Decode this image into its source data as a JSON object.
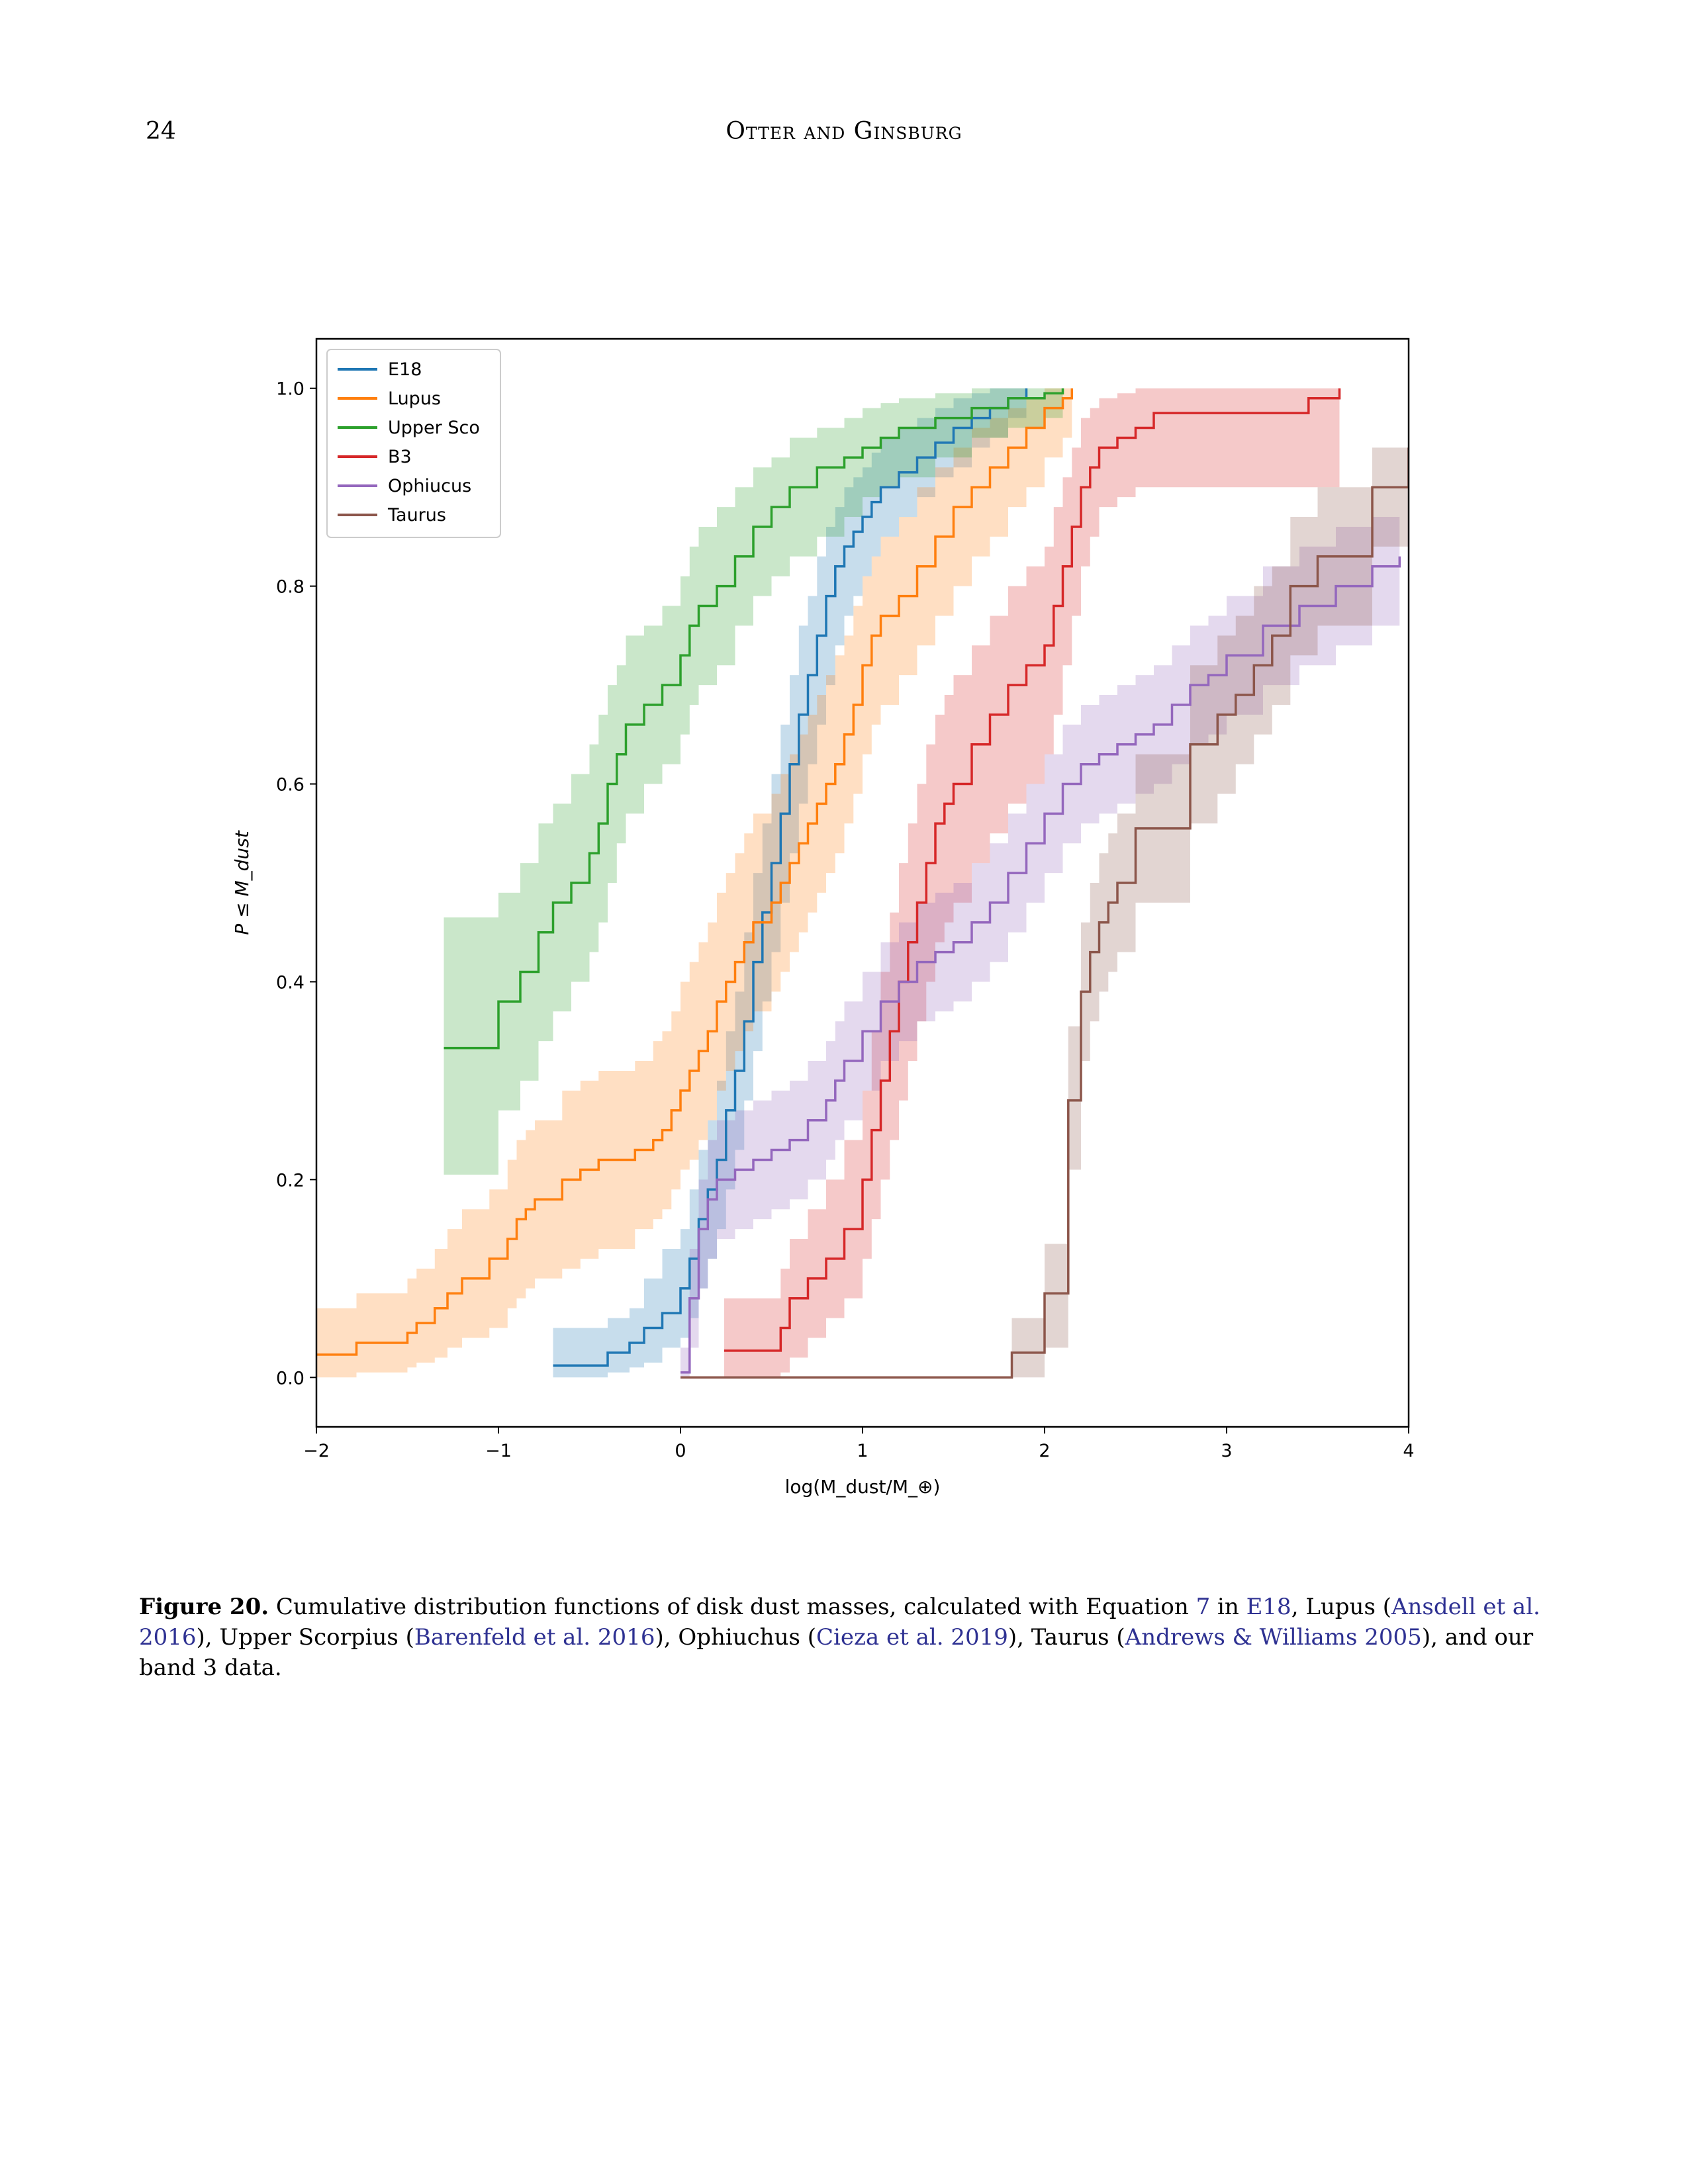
{
  "header": {
    "page_number": "24",
    "running_head": "Otter and Ginsburg"
  },
  "caption": {
    "label": "Figure 20.",
    "t1": " Cumulative distribution functions of disk dust masses, calculated with Equation ",
    "r1": "7",
    "t2": " in ",
    "r2": "E18",
    "t3": ", Lupus (",
    "r3": "Ansdell et al. 2016",
    "t4": "), Upper Scorpius (",
    "r4": "Barenfeld et al. 2016",
    "t5": "), Ophiuchus (",
    "r5": "Cieza et al. 2019",
    "t6": "), Taurus (",
    "r6": "Andrews & Williams 2005",
    "t7": "), and our band 3 data."
  },
  "chart_data": {
    "type": "line",
    "subtype": "step-cdf",
    "title": "",
    "xlabel": "log(M_dust/M_⊕)",
    "ylabel": "P ≤ M_dust",
    "xlim": [
      -2,
      4
    ],
    "ylim": [
      -0.05,
      1.05
    ],
    "xticks": [
      -2,
      -1,
      0,
      1,
      2,
      3,
      4
    ],
    "xtick_labels": [
      "−2",
      "−1",
      "0",
      "1",
      "2",
      "3",
      "4"
    ],
    "yticks": [
      0.0,
      0.2,
      0.4,
      0.6,
      0.8,
      1.0
    ],
    "ytick_labels": [
      "0.0",
      "0.2",
      "0.4",
      "0.6",
      "0.8",
      "1.0"
    ],
    "grid": false,
    "legend_position": "upper-left",
    "series": [
      {
        "name": "E18",
        "color": "#1f77b4",
        "x": [
          -0.7,
          -0.4,
          -0.28,
          -0.2,
          -0.1,
          0.0,
          0.05,
          0.1,
          0.15,
          0.2,
          0.25,
          0.3,
          0.35,
          0.4,
          0.45,
          0.5,
          0.55,
          0.6,
          0.65,
          0.7,
          0.75,
          0.8,
          0.85,
          0.9,
          0.95,
          1.0,
          1.05,
          1.1,
          1.2,
          1.3,
          1.4,
          1.5,
          1.6,
          1.7,
          1.8,
          1.9
        ],
        "y": [
          0.012,
          0.025,
          0.035,
          0.05,
          0.065,
          0.09,
          0.12,
          0.16,
          0.19,
          0.22,
          0.27,
          0.31,
          0.36,
          0.42,
          0.47,
          0.52,
          0.57,
          0.62,
          0.67,
          0.71,
          0.75,
          0.79,
          0.82,
          0.84,
          0.855,
          0.87,
          0.885,
          0.9,
          0.915,
          0.93,
          0.945,
          0.96,
          0.97,
          0.98,
          0.99,
          1.0
        ],
        "band_lo": [
          0.0,
          0.005,
          0.01,
          0.015,
          0.03,
          0.04,
          0.06,
          0.09,
          0.12,
          0.15,
          0.19,
          0.23,
          0.28,
          0.33,
          0.38,
          0.43,
          0.48,
          0.53,
          0.58,
          0.62,
          0.66,
          0.7,
          0.74,
          0.77,
          0.79,
          0.81,
          0.83,
          0.85,
          0.87,
          0.89,
          0.91,
          0.92,
          0.94,
          0.95,
          0.97,
          0.98
        ],
        "band_hi": [
          0.05,
          0.06,
          0.07,
          0.1,
          0.13,
          0.15,
          0.19,
          0.23,
          0.26,
          0.3,
          0.35,
          0.39,
          0.45,
          0.51,
          0.56,
          0.61,
          0.66,
          0.71,
          0.76,
          0.79,
          0.83,
          0.86,
          0.88,
          0.9,
          0.91,
          0.92,
          0.935,
          0.95,
          0.96,
          0.97,
          0.98,
          0.99,
          0.995,
          1.0,
          1.0,
          1.0
        ]
      },
      {
        "name": "Lupus",
        "color": "#ff7f0e",
        "x": [
          -2.0,
          -1.78,
          -1.5,
          -1.45,
          -1.35,
          -1.28,
          -1.2,
          -1.05,
          -0.95,
          -0.9,
          -0.85,
          -0.8,
          -0.65,
          -0.55,
          -0.45,
          -0.25,
          -0.15,
          -0.1,
          -0.05,
          0.0,
          0.05,
          0.1,
          0.15,
          0.2,
          0.25,
          0.3,
          0.35,
          0.4,
          0.5,
          0.55,
          0.6,
          0.65,
          0.7,
          0.75,
          0.8,
          0.85,
          0.9,
          0.95,
          1.0,
          1.05,
          1.1,
          1.2,
          1.3,
          1.4,
          1.5,
          1.6,
          1.7,
          1.8,
          1.9,
          2.0,
          2.1,
          2.15
        ],
        "y": [
          0.023,
          0.035,
          0.045,
          0.055,
          0.07,
          0.085,
          0.1,
          0.12,
          0.14,
          0.16,
          0.17,
          0.18,
          0.2,
          0.21,
          0.22,
          0.23,
          0.24,
          0.25,
          0.27,
          0.29,
          0.31,
          0.33,
          0.35,
          0.38,
          0.4,
          0.42,
          0.44,
          0.46,
          0.48,
          0.5,
          0.52,
          0.54,
          0.56,
          0.58,
          0.6,
          0.62,
          0.65,
          0.68,
          0.72,
          0.75,
          0.77,
          0.79,
          0.82,
          0.85,
          0.88,
          0.9,
          0.92,
          0.94,
          0.96,
          0.98,
          0.99,
          1.0
        ],
        "band_lo": [
          0.0,
          0.005,
          0.01,
          0.015,
          0.02,
          0.03,
          0.04,
          0.05,
          0.07,
          0.08,
          0.09,
          0.1,
          0.11,
          0.12,
          0.13,
          0.15,
          0.16,
          0.17,
          0.19,
          0.21,
          0.22,
          0.24,
          0.26,
          0.29,
          0.31,
          0.33,
          0.35,
          0.37,
          0.39,
          0.41,
          0.43,
          0.45,
          0.47,
          0.49,
          0.51,
          0.53,
          0.56,
          0.59,
          0.63,
          0.66,
          0.68,
          0.71,
          0.74,
          0.77,
          0.8,
          0.83,
          0.85,
          0.88,
          0.9,
          0.93,
          0.95,
          0.96
        ],
        "band_hi": [
          0.07,
          0.085,
          0.1,
          0.11,
          0.13,
          0.15,
          0.17,
          0.19,
          0.22,
          0.24,
          0.25,
          0.26,
          0.29,
          0.3,
          0.31,
          0.32,
          0.34,
          0.35,
          0.37,
          0.4,
          0.42,
          0.44,
          0.46,
          0.49,
          0.51,
          0.53,
          0.55,
          0.57,
          0.59,
          0.61,
          0.63,
          0.65,
          0.67,
          0.69,
          0.71,
          0.73,
          0.75,
          0.78,
          0.81,
          0.83,
          0.85,
          0.87,
          0.9,
          0.92,
          0.94,
          0.96,
          0.97,
          0.98,
          0.99,
          1.0,
          1.0,
          1.0
        ]
      },
      {
        "name": "Upper Sco",
        "color": "#2ca02c",
        "x": [
          -1.3,
          -1.0,
          -0.88,
          -0.78,
          -0.7,
          -0.6,
          -0.5,
          -0.45,
          -0.4,
          -0.35,
          -0.3,
          -0.2,
          -0.1,
          0.0,
          0.05,
          0.1,
          0.2,
          0.3,
          0.4,
          0.5,
          0.6,
          0.75,
          0.9,
          1.0,
          1.1,
          1.2,
          1.4,
          1.6,
          1.8,
          2.0,
          2.1
        ],
        "y": [
          0.333,
          0.38,
          0.41,
          0.45,
          0.48,
          0.5,
          0.53,
          0.56,
          0.6,
          0.63,
          0.66,
          0.68,
          0.7,
          0.73,
          0.76,
          0.78,
          0.8,
          0.83,
          0.86,
          0.88,
          0.9,
          0.92,
          0.93,
          0.94,
          0.95,
          0.96,
          0.97,
          0.98,
          0.99,
          0.995,
          1.0
        ],
        "band_lo": [
          0.205,
          0.27,
          0.3,
          0.34,
          0.37,
          0.4,
          0.43,
          0.46,
          0.5,
          0.54,
          0.57,
          0.6,
          0.62,
          0.65,
          0.68,
          0.7,
          0.72,
          0.76,
          0.79,
          0.81,
          0.83,
          0.85,
          0.87,
          0.89,
          0.9,
          0.91,
          0.93,
          0.95,
          0.96,
          0.97,
          0.98
        ],
        "band_hi": [
          0.465,
          0.49,
          0.52,
          0.56,
          0.58,
          0.61,
          0.64,
          0.67,
          0.7,
          0.72,
          0.75,
          0.76,
          0.78,
          0.81,
          0.84,
          0.86,
          0.88,
          0.9,
          0.92,
          0.93,
          0.95,
          0.96,
          0.97,
          0.98,
          0.985,
          0.99,
          0.995,
          1.0,
          1.0,
          1.0,
          1.0
        ]
      },
      {
        "name": "B3",
        "color": "#d62728",
        "x": [
          0.24,
          0.55,
          0.6,
          0.7,
          0.8,
          0.9,
          1.0,
          1.05,
          1.1,
          1.15,
          1.2,
          1.25,
          1.3,
          1.35,
          1.4,
          1.45,
          1.5,
          1.6,
          1.7,
          1.8,
          1.9,
          2.0,
          2.05,
          2.1,
          2.15,
          2.2,
          2.25,
          2.3,
          2.4,
          2.5,
          2.6,
          3.45,
          3.62
        ],
        "y": [
          0.027,
          0.05,
          0.08,
          0.1,
          0.12,
          0.15,
          0.2,
          0.25,
          0.3,
          0.35,
          0.4,
          0.44,
          0.48,
          0.52,
          0.56,
          0.58,
          0.6,
          0.64,
          0.67,
          0.7,
          0.72,
          0.74,
          0.78,
          0.82,
          0.86,
          0.9,
          0.92,
          0.94,
          0.95,
          0.96,
          0.975,
          0.99,
          1.0
        ],
        "band_lo": [
          0.0,
          0.005,
          0.02,
          0.04,
          0.06,
          0.08,
          0.12,
          0.16,
          0.2,
          0.24,
          0.28,
          0.32,
          0.36,
          0.4,
          0.44,
          0.46,
          0.48,
          0.52,
          0.55,
          0.58,
          0.6,
          0.63,
          0.67,
          0.72,
          0.77,
          0.82,
          0.85,
          0.88,
          0.89,
          0.9,
          0.9,
          0.9,
          0.905
        ],
        "band_hi": [
          0.08,
          0.11,
          0.14,
          0.17,
          0.2,
          0.24,
          0.29,
          0.35,
          0.41,
          0.47,
          0.52,
          0.56,
          0.6,
          0.64,
          0.67,
          0.69,
          0.71,
          0.74,
          0.77,
          0.8,
          0.82,
          0.84,
          0.88,
          0.91,
          0.94,
          0.97,
          0.98,
          0.99,
          0.995,
          1.0,
          1.0,
          1.0,
          1.0
        ]
      },
      {
        "name": "Ophiucus",
        "color": "#9467bd",
        "x": [
          0.0,
          0.05,
          0.1,
          0.15,
          0.2,
          0.3,
          0.4,
          0.5,
          0.6,
          0.7,
          0.8,
          0.85,
          0.9,
          1.0,
          1.1,
          1.2,
          1.3,
          1.4,
          1.5,
          1.6,
          1.7,
          1.8,
          1.9,
          2.0,
          2.1,
          2.2,
          2.3,
          2.4,
          2.5,
          2.6,
          2.7,
          2.8,
          2.9,
          3.0,
          3.2,
          3.4,
          3.6,
          3.8,
          3.95
        ],
        "y": [
          0.005,
          0.08,
          0.15,
          0.18,
          0.2,
          0.21,
          0.22,
          0.23,
          0.24,
          0.26,
          0.28,
          0.3,
          0.32,
          0.35,
          0.38,
          0.4,
          0.42,
          0.43,
          0.44,
          0.46,
          0.48,
          0.51,
          0.54,
          0.57,
          0.6,
          0.62,
          0.63,
          0.64,
          0.65,
          0.66,
          0.68,
          0.7,
          0.71,
          0.73,
          0.76,
          0.78,
          0.8,
          0.82,
          0.83
        ],
        "band_lo": [
          0.0,
          0.03,
          0.09,
          0.12,
          0.14,
          0.15,
          0.16,
          0.17,
          0.18,
          0.2,
          0.22,
          0.24,
          0.26,
          0.29,
          0.32,
          0.34,
          0.36,
          0.37,
          0.38,
          0.4,
          0.42,
          0.45,
          0.48,
          0.51,
          0.54,
          0.56,
          0.57,
          0.58,
          0.59,
          0.6,
          0.62,
          0.64,
          0.65,
          0.67,
          0.7,
          0.72,
          0.74,
          0.76,
          0.77
        ],
        "band_hi": [
          0.03,
          0.13,
          0.2,
          0.24,
          0.26,
          0.27,
          0.28,
          0.29,
          0.3,
          0.32,
          0.34,
          0.36,
          0.38,
          0.41,
          0.44,
          0.46,
          0.48,
          0.49,
          0.5,
          0.52,
          0.54,
          0.57,
          0.6,
          0.63,
          0.66,
          0.68,
          0.69,
          0.7,
          0.71,
          0.72,
          0.74,
          0.76,
          0.77,
          0.79,
          0.82,
          0.84,
          0.86,
          0.87,
          0.88
        ]
      },
      {
        "name": "Taurus",
        "color": "#8c564b",
        "x": [
          0.0,
          1.82,
          2.0,
          2.13,
          2.2,
          2.25,
          2.3,
          2.35,
          2.4,
          2.5,
          2.8,
          2.95,
          3.05,
          3.15,
          3.25,
          3.35,
          3.5,
          3.8,
          4.0
        ],
        "y": [
          0.0,
          0.025,
          0.085,
          0.28,
          0.39,
          0.43,
          0.46,
          0.48,
          0.5,
          0.555,
          0.64,
          0.67,
          0.69,
          0.72,
          0.75,
          0.8,
          0.83,
          0.9,
          0.94
        ],
        "band_lo": [
          0.0,
          0.0,
          0.03,
          0.21,
          0.32,
          0.36,
          0.39,
          0.41,
          0.43,
          0.48,
          0.56,
          0.59,
          0.62,
          0.65,
          0.68,
          0.73,
          0.76,
          0.84,
          0.88
        ],
        "band_hi": [
          0.0,
          0.06,
          0.135,
          0.355,
          0.46,
          0.5,
          0.53,
          0.55,
          0.57,
          0.63,
          0.72,
          0.75,
          0.77,
          0.8,
          0.82,
          0.87,
          0.9,
          0.94,
          0.96
        ]
      }
    ]
  }
}
